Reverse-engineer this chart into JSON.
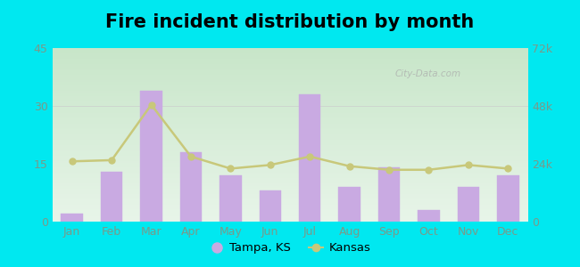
{
  "title": "Fire incident distribution by month",
  "months": [
    "Jan",
    "Feb",
    "Mar",
    "Apr",
    "May",
    "Jun",
    "Jul",
    "Aug",
    "Sep",
    "Oct",
    "Nov",
    "Dec"
  ],
  "tampa_values": [
    2,
    13,
    34,
    18,
    12,
    8,
    33,
    9,
    14,
    3,
    9,
    12
  ],
  "kansas_values": [
    25000,
    25500,
    48500,
    27000,
    22000,
    23500,
    27000,
    23000,
    21500,
    21500,
    23500,
    22000
  ],
  "bar_color": "#c9aae2",
  "bar_edge_color": "#c9aae2",
  "line_color": "#c8c87a",
  "line_marker_color": "#c8c87a",
  "background_outer": "#00e8f0",
  "grad_top": "#e8f5e9",
  "grad_bottom": "#c8e6c9",
  "ylabel_left": "",
  "ylabel_right": "",
  "ylim_left": [
    0,
    45
  ],
  "ylim_right": [
    0,
    72000
  ],
  "yticks_left": [
    0,
    15,
    30,
    45
  ],
  "yticks_right": [
    0,
    24000,
    48000,
    72000
  ],
  "ytick_labels_left": [
    "0",
    "15",
    "30",
    "45"
  ],
  "ytick_labels_right": [
    "0",
    "24k",
    "48k",
    "72k"
  ],
  "legend_tampa": "Tampa, KS",
  "legend_kansas": "Kansas",
  "watermark": "City-Data.com",
  "title_fontsize": 15,
  "tick_fontsize": 9,
  "tick_color": "#7a9a8a"
}
